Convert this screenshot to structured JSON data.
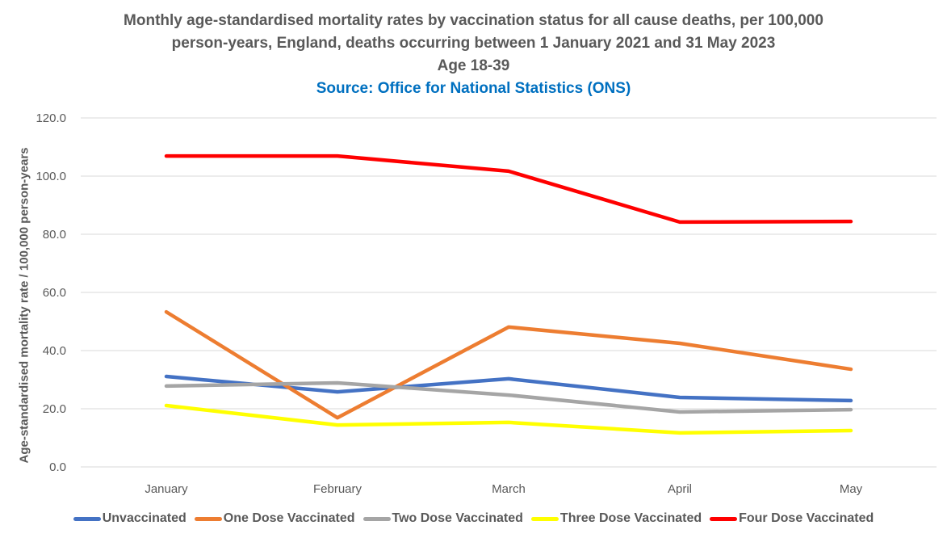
{
  "chart_data": {
    "type": "line",
    "title": "Monthly age-standardised mortality rates by vaccination status for all cause deaths, per 100,000 person-years, England, deaths occurring between 1 January 2021 and 31 May 2023",
    "title_lines": [
      "Monthly age-standardised mortality rates by vaccination status for all cause deaths, per 100,000",
      "person-years, England, deaths occurring between 1 January 2021 and 31 May 2023",
      "Age 18-39"
    ],
    "subtitle": "Source: Office for National Statistics (ONS)",
    "xlabel": "",
    "ylabel": "Age-standardised mortality rate / 100,000 person-years",
    "categories": [
      "January",
      "February",
      "March",
      "April",
      "May"
    ],
    "ylim": [
      0,
      120
    ],
    "yticks": [
      "0.0",
      "20.0",
      "40.0",
      "60.0",
      "80.0",
      "100.0",
      "120.0"
    ],
    "grid": true,
    "legend_position": "bottom",
    "series": [
      {
        "name": "Unvaccinated",
        "color": "#4472C4",
        "values": [
          31.1,
          25.8,
          30.3,
          23.9,
          22.8
        ]
      },
      {
        "name": "One Dose Vaccinated",
        "color": "#ED7D31",
        "values": [
          53.3,
          16.9,
          48.1,
          42.5,
          33.6
        ]
      },
      {
        "name": "Two Dose Vaccinated",
        "color": "#A5A5A5",
        "values": [
          27.8,
          28.9,
          24.7,
          18.9,
          19.7
        ]
      },
      {
        "name": "Three Dose Vaccinated",
        "color": "#FFFF00",
        "values": [
          21.1,
          14.4,
          15.3,
          11.7,
          12.5
        ]
      },
      {
        "name": "Four Dose Vaccinated",
        "color": "#FF0000",
        "values": [
          106.9,
          106.9,
          101.7,
          84.2,
          84.4
        ]
      }
    ]
  }
}
